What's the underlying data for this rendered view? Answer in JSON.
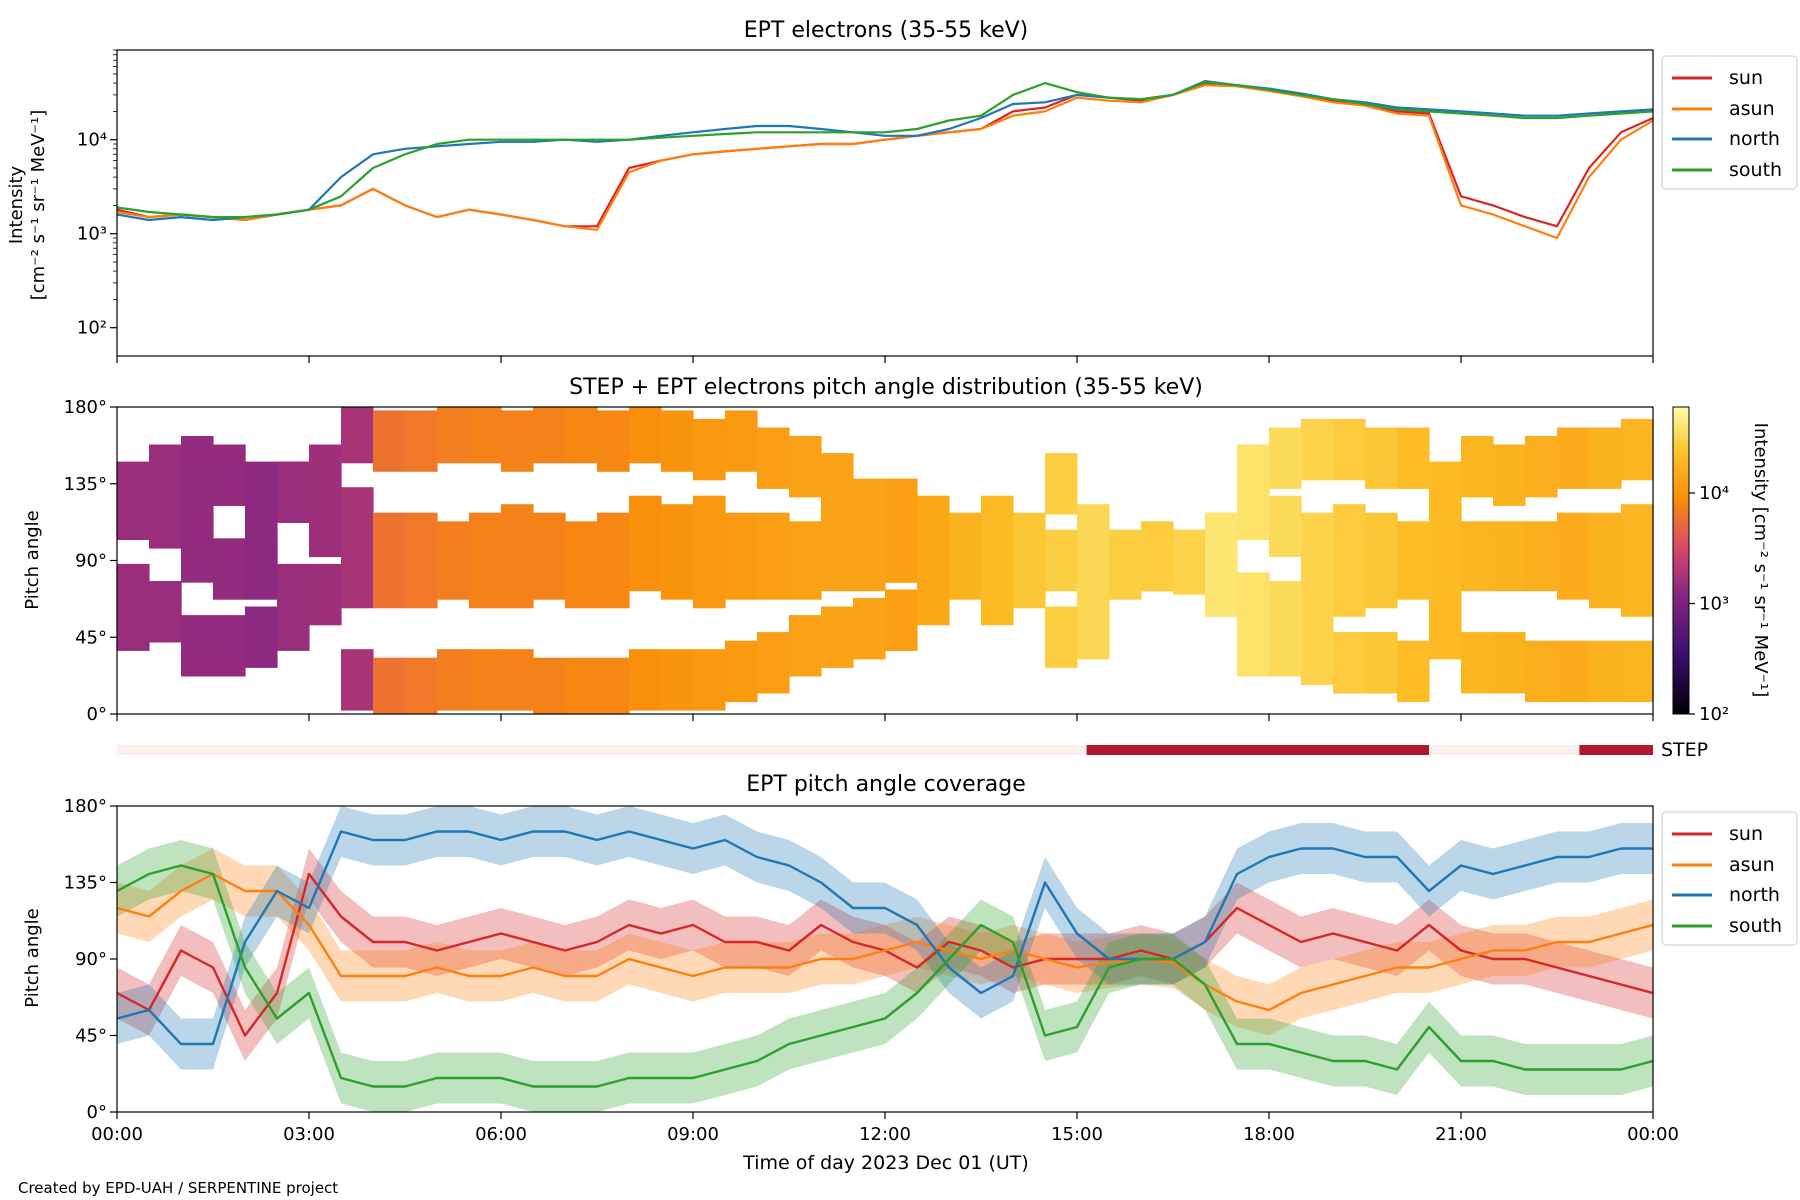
{
  "footer": "Created by EPD-UAH / SERPENTINE project",
  "colors": {
    "sun": "#d62728",
    "asun": "#ff7f0e",
    "north": "#1f77b4",
    "south": "#2ca02c",
    "step": "#b2182b",
    "step_off": "#fdf0ec"
  },
  "chart_data": [
    {
      "type": "line",
      "title": "EPT electrons (35-55 keV)",
      "ylabel": [
        "Intensity",
        "[cm⁻² s⁻¹ sr⁻¹ MeV⁻¹]"
      ],
      "yscale": "log",
      "ylim": [
        50,
        90000
      ],
      "yticks": [
        "10²",
        "10³",
        "10⁴"
      ],
      "xlim_hours": [
        0,
        24
      ],
      "legend": {
        "position": "outside-right",
        "entries": [
          "sun",
          "asun",
          "north",
          "south"
        ]
      },
      "x_hours": [
        0,
        0.5,
        1,
        1.5,
        2,
        2.5,
        3,
        3.5,
        4,
        4.5,
        5,
        5.5,
        6,
        6.5,
        7,
        7.5,
        8,
        8.5,
        9,
        9.5,
        10,
        10.5,
        11,
        11.5,
        12,
        12.5,
        13,
        13.5,
        14,
        14.5,
        15,
        15.5,
        16,
        16.5,
        17,
        17.5,
        18,
        18.5,
        19,
        19.5,
        20,
        20.5,
        21,
        21.5,
        22,
        22.5,
        23,
        23.5,
        24
      ],
      "series": [
        {
          "name": "sun",
          "values": [
            1800,
            1500,
            1600,
            1500,
            1400,
            1600,
            1800,
            2000,
            3000,
            2000,
            1500,
            1800,
            1600,
            1400,
            1200,
            1200,
            5000,
            6000,
            7000,
            7500,
            8000,
            8500,
            9000,
            9000,
            10000,
            11000,
            12000,
            13000,
            20000,
            22000,
            30000,
            28000,
            26000,
            30000,
            40000,
            38000,
            34000,
            30000,
            26000,
            24000,
            20000,
            19000,
            2500,
            2000,
            1500,
            1200,
            5000,
            12000,
            17000
          ]
        },
        {
          "name": "asun",
          "values": [
            1700,
            1500,
            1600,
            1500,
            1400,
            1600,
            1800,
            2000,
            3000,
            2000,
            1500,
            1800,
            1600,
            1400,
            1200,
            1100,
            4500,
            6000,
            7000,
            7500,
            8000,
            8500,
            9000,
            9000,
            10000,
            11000,
            12000,
            13000,
            18000,
            20000,
            28000,
            26000,
            25000,
            30000,
            38000,
            37000,
            33000,
            29000,
            25000,
            23000,
            19000,
            18000,
            2000,
            1600,
            1200,
            900,
            4000,
            10000,
            16000
          ]
        },
        {
          "name": "north",
          "values": [
            1600,
            1400,
            1500,
            1400,
            1500,
            1600,
            1800,
            4000,
            7000,
            8000,
            8500,
            9000,
            9500,
            9500,
            10000,
            9500,
            10000,
            11000,
            12000,
            13000,
            14000,
            14000,
            13000,
            12000,
            11000,
            11000,
            13000,
            17000,
            24000,
            25000,
            30000,
            28000,
            27000,
            30000,
            42000,
            38000,
            35000,
            31000,
            27000,
            25000,
            22000,
            21000,
            20000,
            19000,
            18000,
            18000,
            19000,
            20000,
            21000
          ]
        },
        {
          "name": "south",
          "values": [
            1900,
            1700,
            1600,
            1500,
            1500,
            1600,
            1800,
            2500,
            5000,
            7000,
            9000,
            10000,
            10000,
            10000,
            10000,
            10000,
            10000,
            10500,
            11000,
            11500,
            12000,
            12000,
            12000,
            12000,
            12000,
            13000,
            16000,
            18000,
            30000,
            40000,
            32000,
            28000,
            27000,
            30000,
            41000,
            38000,
            34000,
            30000,
            27000,
            24000,
            21000,
            20000,
            19000,
            18000,
            17000,
            17000,
            18000,
            19000,
            20000
          ]
        }
      ]
    },
    {
      "type": "heatmap",
      "title": "STEP + EPT electrons pitch angle distribution (35-55 keV)",
      "ylabel": "Pitch angle",
      "yticks": [
        "0°",
        "45°",
        "90°",
        "135°",
        "180°"
      ],
      "colorbar": {
        "label": "Intensity [cm⁻² s⁻¹ sr⁻¹ MeV⁻¹]",
        "scale": "log",
        "range": [
          100,
          60000
        ],
        "ticks": [
          "10²",
          "10³",
          "10⁴"
        ],
        "colormap": "inferno"
      },
      "x_hours": [
        0,
        0.5,
        1,
        1.5,
        2,
        2.5,
        3,
        3.5,
        4,
        4.5,
        5,
        5.5,
        6,
        6.5,
        7,
        7.5,
        8,
        8.5,
        9,
        9.5,
        10,
        10.5,
        11,
        11.5,
        12,
        12.5,
        13,
        13.5,
        14,
        14.5,
        15,
        15.5,
        16,
        16.5,
        17,
        17.5,
        18,
        18.5,
        19,
        19.5,
        20,
        20.5,
        21,
        21.5,
        22,
        22.5,
        23,
        23.5,
        24
      ],
      "intensity": [
        1500,
        1500,
        1400,
        1400,
        1300,
        1500,
        1600,
        1800,
        6000,
        6500,
        7000,
        7500,
        7500,
        7500,
        8000,
        8000,
        9000,
        10000,
        10500,
        11000,
        12000,
        12500,
        13000,
        13000,
        12000,
        14000,
        17000,
        20000,
        25000,
        28000,
        32000,
        28000,
        27000,
        30000,
        40000,
        38000,
        34000,
        30000,
        27000,
        25000,
        21000,
        20000,
        18000,
        17000,
        16000,
        15000,
        17000,
        18000,
        19000
      ]
    },
    {
      "type": "timeline",
      "label": "STEP",
      "active_intervals_hours": [
        [
          15.15,
          20.5
        ],
        [
          22.85,
          24
        ]
      ]
    },
    {
      "type": "area",
      "title": "EPT pitch angle coverage",
      "ylabel": "Pitch angle",
      "xlabel": "Time of day 2023 Dec 01 (UT)",
      "yticks": [
        "0°",
        "45°",
        "90°",
        "135°",
        "180°"
      ],
      "xticks": [
        "00:00",
        "03:00",
        "06:00",
        "09:00",
        "12:00",
        "15:00",
        "18:00",
        "21:00",
        "00:00"
      ],
      "ylim": [
        0,
        180
      ],
      "legend": {
        "position": "outside-right",
        "entries": [
          "sun",
          "asun",
          "north",
          "south"
        ]
      },
      "band_halfwidth_deg": 15,
      "x_hours": [
        0,
        0.5,
        1,
        1.5,
        2,
        2.5,
        3,
        3.5,
        4,
        4.5,
        5,
        5.5,
        6,
        6.5,
        7,
        7.5,
        8,
        8.5,
        9,
        9.5,
        10,
        10.5,
        11,
        11.5,
        12,
        12.5,
        13,
        13.5,
        14,
        14.5,
        15,
        15.5,
        16,
        16.5,
        17,
        17.5,
        18,
        18.5,
        19,
        19.5,
        20,
        20.5,
        21,
        21.5,
        22,
        22.5,
        23,
        23.5,
        24
      ],
      "series": [
        {
          "name": "sun",
          "values": [
            70,
            60,
            95,
            85,
            45,
            70,
            140,
            115,
            100,
            100,
            95,
            100,
            105,
            100,
            95,
            100,
            110,
            105,
            110,
            100,
            100,
            95,
            110,
            100,
            95,
            85,
            100,
            95,
            85,
            90,
            90,
            90,
            95,
            90,
            100,
            120,
            110,
            100,
            105,
            100,
            95,
            110,
            95,
            90,
            90,
            85,
            80,
            75,
            70
          ]
        },
        {
          "name": "asun",
          "values": [
            120,
            115,
            130,
            140,
            130,
            130,
            110,
            80,
            80,
            80,
            85,
            80,
            80,
            85,
            80,
            80,
            90,
            85,
            80,
            85,
            85,
            85,
            90,
            90,
            95,
            100,
            95,
            90,
            95,
            90,
            85,
            88,
            90,
            88,
            75,
            65,
            60,
            70,
            75,
            80,
            85,
            85,
            90,
            95,
            95,
            100,
            100,
            105,
            110
          ]
        },
        {
          "name": "north",
          "values": [
            55,
            60,
            40,
            40,
            100,
            130,
            120,
            165,
            160,
            160,
            165,
            165,
            160,
            165,
            165,
            160,
            165,
            160,
            155,
            160,
            150,
            145,
            135,
            120,
            120,
            110,
            85,
            70,
            80,
            135,
            105,
            90,
            90,
            90,
            100,
            140,
            150,
            155,
            155,
            150,
            150,
            130,
            145,
            140,
            145,
            150,
            150,
            155,
            155
          ]
        },
        {
          "name": "south",
          "values": [
            130,
            140,
            145,
            140,
            85,
            55,
            70,
            20,
            15,
            15,
            20,
            20,
            20,
            15,
            15,
            15,
            20,
            20,
            20,
            25,
            30,
            40,
            45,
            50,
            55,
            70,
            90,
            110,
            100,
            45,
            50,
            85,
            90,
            90,
            75,
            40,
            40,
            35,
            30,
            30,
            25,
            50,
            30,
            30,
            25,
            25,
            25,
            25,
            30
          ]
        }
      ]
    }
  ]
}
